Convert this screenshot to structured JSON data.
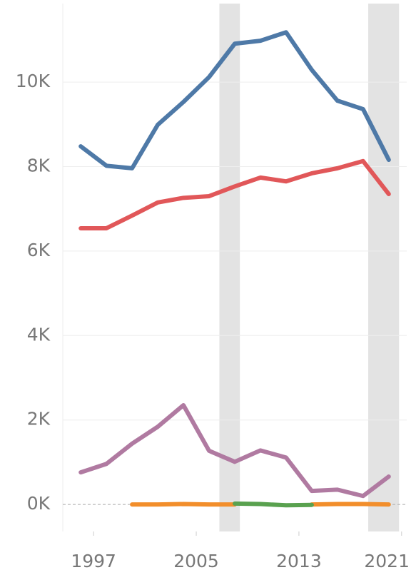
{
  "chart_data": {
    "type": "line",
    "x": [
      1996,
      1998,
      2000,
      2002,
      2004,
      2006,
      2008,
      2010,
      2012,
      2014,
      2016,
      2018,
      2020
    ],
    "series": [
      {
        "color": "#4e79a7",
        "values": [
          8.48,
          8.02,
          7.96,
          8.99,
          9.53,
          10.12,
          10.91,
          10.98,
          11.18,
          10.29,
          9.56,
          9.36,
          8.16
        ]
      },
      {
        "color": "#e15759",
        "values": [
          6.54,
          6.54,
          6.84,
          7.15,
          7.26,
          7.3,
          7.53,
          7.74,
          7.65,
          7.84,
          7.96,
          8.13,
          7.35
        ]
      },
      {
        "color": "#b07aa1",
        "values": [
          0.76,
          0.96,
          1.44,
          1.84,
          2.35,
          1.27,
          1.01,
          1.28,
          1.11,
          0.32,
          0.35,
          0.2,
          0.66
        ]
      },
      {
        "color": "#f28e2b",
        "values": [
          null,
          null,
          0,
          0,
          0.01,
          0,
          0,
          null,
          null,
          0,
          0.01,
          0.01,
          0
        ]
      },
      {
        "color": "#59a14f",
        "values": [
          null,
          null,
          null,
          null,
          null,
          null,
          0.02,
          0.01,
          -0.02,
          -0.01,
          null,
          null,
          null
        ]
      }
    ],
    "shaded_ranges": [
      [
        2006.8,
        2008.4
      ],
      [
        2018.4,
        2020.8
      ]
    ],
    "xlim": [
      1994.6,
      2021.4
    ],
    "xticks": [
      1997,
      2005,
      2013,
      2021
    ],
    "ylim": [
      -0.64,
      11.86
    ],
    "yticks": [
      {
        "value": 0,
        "label": "0K"
      },
      {
        "value": 2,
        "label": "2K"
      },
      {
        "value": 4,
        "label": "4K"
      },
      {
        "value": 6,
        "label": "6K"
      },
      {
        "value": 8,
        "label": "8K"
      },
      {
        "value": 10,
        "label": "10K"
      }
    ],
    "grid": true
  }
}
